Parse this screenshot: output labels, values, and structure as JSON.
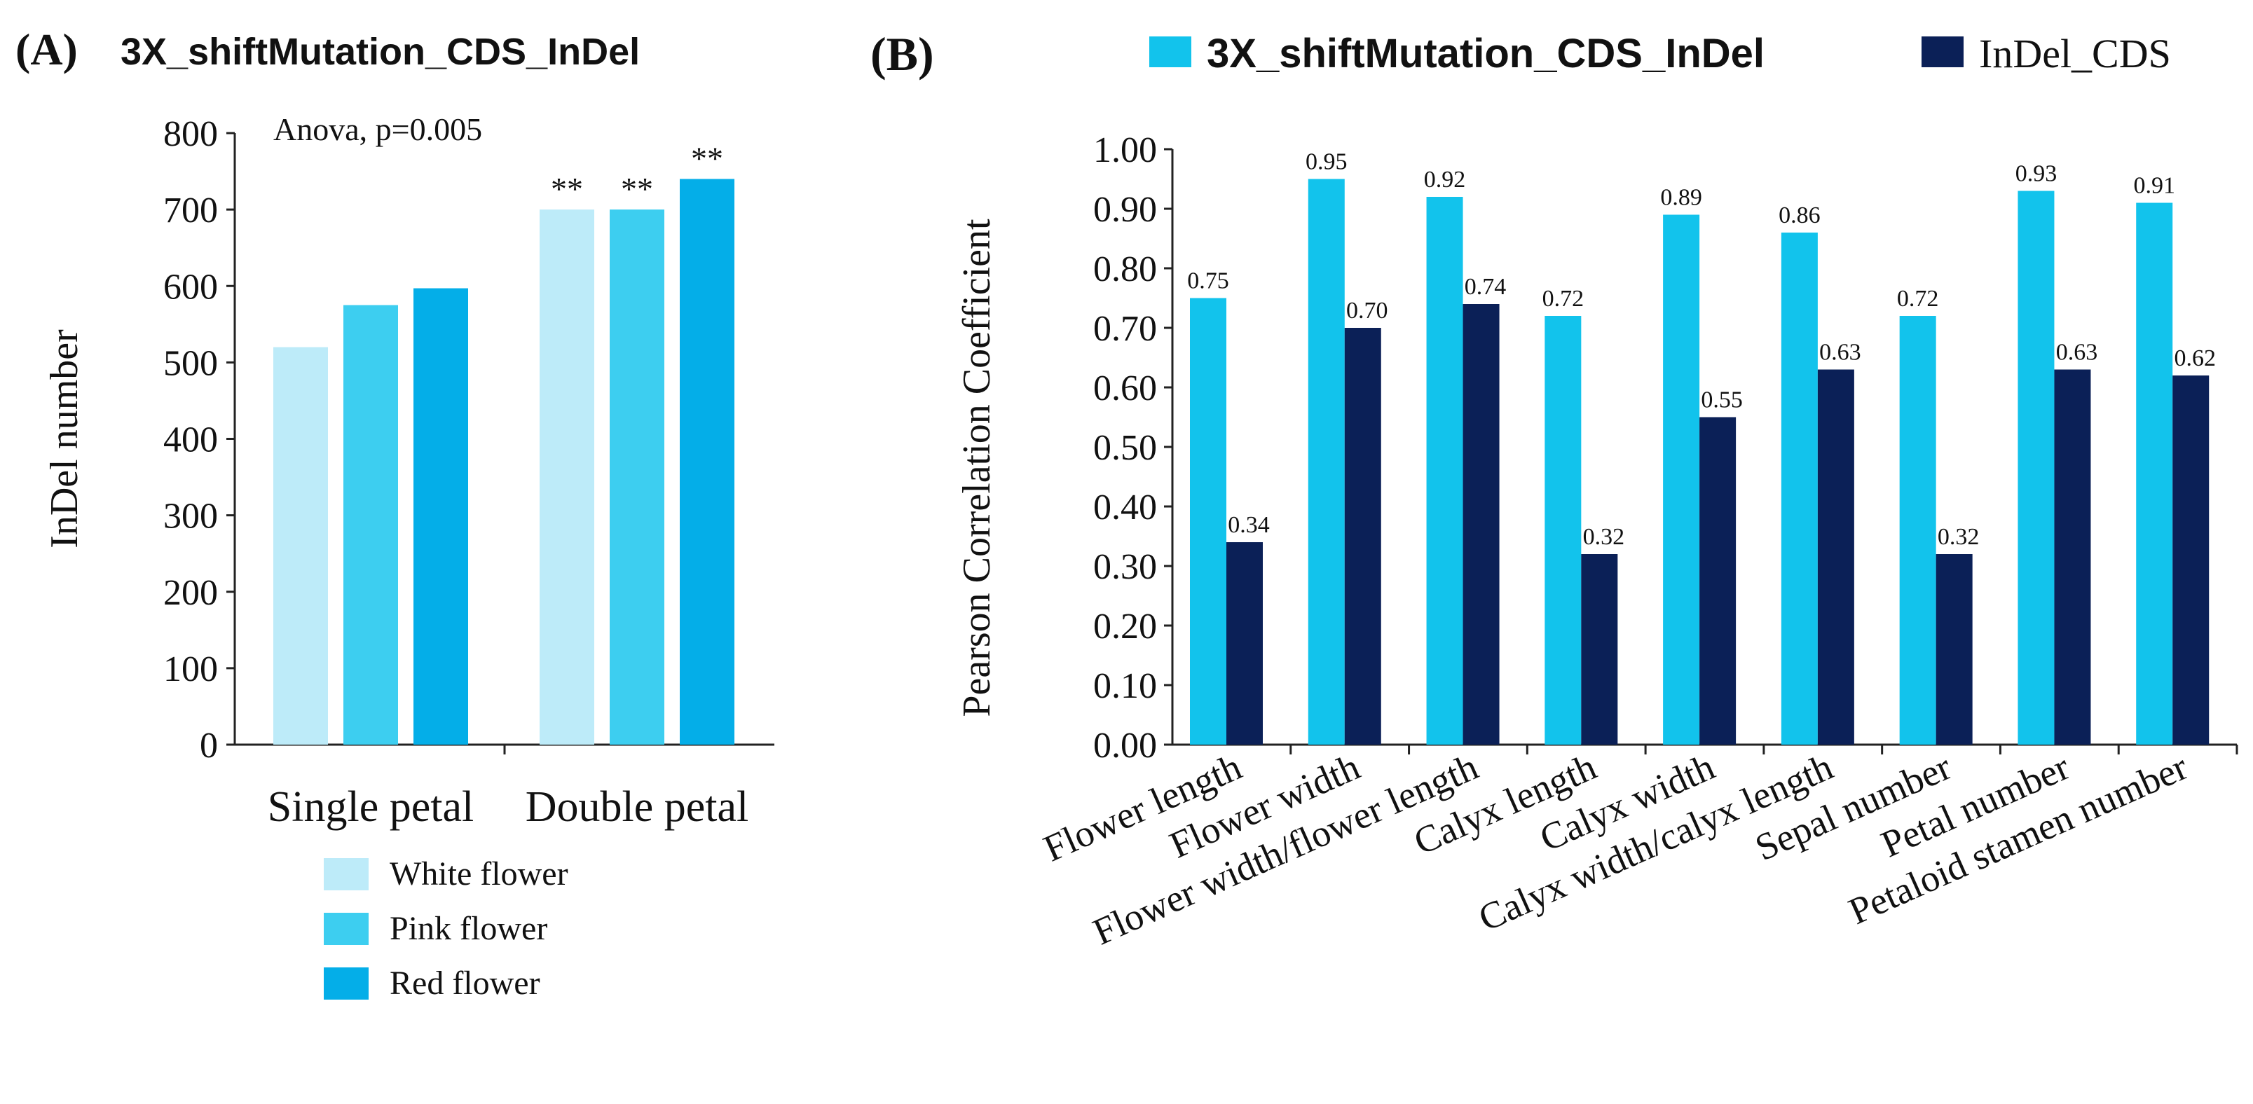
{
  "chart_data": [
    {
      "type": "bar",
      "panel_label": "(A)",
      "title": "3X_shiftMutation_CDS_InDel",
      "ylabel": "InDel number",
      "xlabel": "",
      "ylim": [
        0,
        800
      ],
      "yticks": [
        "0",
        "100",
        "200",
        "300",
        "400",
        "500",
        "600",
        "700",
        "800"
      ],
      "grid": false,
      "annotation": "Anova, p=0.005",
      "categories": [
        "Single petal",
        "Double petal"
      ],
      "series": [
        {
          "name": "White flower",
          "color": "#BDEBF9",
          "values": [
            520,
            700
          ],
          "markers": [
            "",
            "**"
          ]
        },
        {
          "name": "Pink flower",
          "color": "#3DCEF0",
          "values": [
            575,
            700
          ],
          "markers": [
            "",
            "**"
          ]
        },
        {
          "name": "Red flower",
          "color": "#04AEE8",
          "values": [
            597,
            740
          ],
          "markers": [
            "",
            "**"
          ]
        }
      ],
      "legend_position": "bottom"
    },
    {
      "type": "bar",
      "panel_label": "(B)",
      "title": "",
      "ylabel": "Pearson Correlation Coefficient",
      "xlabel": "",
      "ylim": [
        0,
        1
      ],
      "yticks": [
        "0.00",
        "0.10",
        "0.20",
        "0.30",
        "0.40",
        "0.50",
        "0.60",
        "0.70",
        "0.80",
        "0.90",
        "1.00"
      ],
      "grid": false,
      "categories": [
        "Flower length",
        "Flower width",
        "Flower width/flower length",
        "Calyx length",
        "Calyx width",
        "Calyx width/calyx length",
        "Sepal number",
        "Petal number",
        "Petaloid stamen number"
      ],
      "series": [
        {
          "name": "3X_shiftMutation_CDS_InDel",
          "color": "#12C3EC",
          "values": [
            0.75,
            0.95,
            0.92,
            0.72,
            0.89,
            0.86,
            0.72,
            0.93,
            0.91
          ],
          "labels": [
            "0.75",
            "0.95",
            "0.92",
            "0.72",
            "0.89",
            "0.86",
            "0.72",
            "0.93",
            "0.91"
          ]
        },
        {
          "name": "InDel_CDS",
          "color": "#0B2057",
          "values": [
            0.34,
            0.7,
            0.74,
            0.32,
            0.55,
            0.63,
            0.32,
            0.63,
            0.62
          ],
          "labels": [
            "0.34",
            "0.70",
            "0.74",
            "0.32",
            "0.55",
            "0.63",
            "0.32",
            "0.63",
            "0.62"
          ]
        }
      ],
      "legend_position": "top"
    }
  ]
}
